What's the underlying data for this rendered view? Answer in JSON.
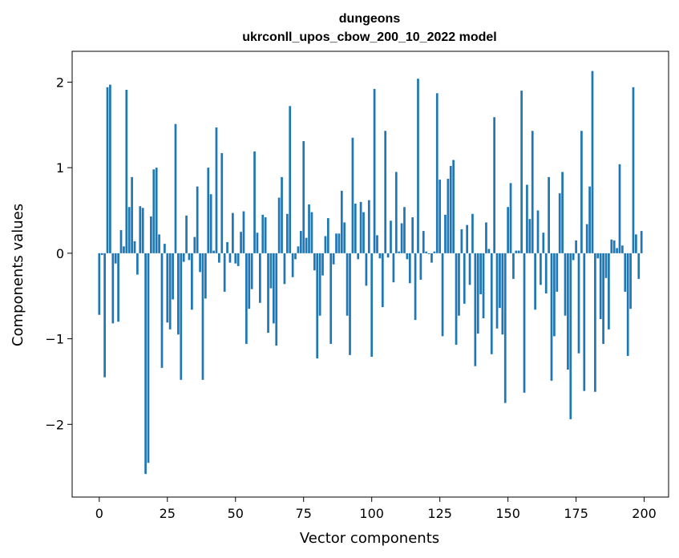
{
  "chart_data": {
    "type": "bar",
    "title": "dungeons",
    "subtitle": "ukrconll_upos_cbow_200_10_2022 model",
    "xlabel": "Vector components",
    "ylabel": "Components values",
    "xlim": [
      -9.95,
      208.95
    ],
    "ylim": [
      -2.85,
      2.36
    ],
    "xticks": [
      0,
      25,
      50,
      75,
      100,
      125,
      150,
      175,
      200
    ],
    "yticks": [
      -2,
      -1,
      0,
      1,
      2
    ],
    "ytick_labels": [
      "−2",
      "−1",
      "0",
      "1",
      "2"
    ],
    "bar_color": "#1f77b4",
    "grid": false,
    "x": [
      0,
      1,
      2,
      3,
      4,
      5,
      6,
      7,
      8,
      9,
      10,
      11,
      12,
      13,
      14,
      15,
      16,
      17,
      18,
      19,
      20,
      21,
      22,
      23,
      24,
      25,
      26,
      27,
      28,
      29,
      30,
      31,
      32,
      33,
      34,
      35,
      36,
      37,
      38,
      39,
      40,
      41,
      42,
      43,
      44,
      45,
      46,
      47,
      48,
      49,
      50,
      51,
      52,
      53,
      54,
      55,
      56,
      57,
      58,
      59,
      60,
      61,
      62,
      63,
      64,
      65,
      66,
      67,
      68,
      69,
      70,
      71,
      72,
      73,
      74,
      75,
      76,
      77,
      78,
      79,
      80,
      81,
      82,
      83,
      84,
      85,
      86,
      87,
      88,
      89,
      90,
      91,
      92,
      93,
      94,
      95,
      96,
      97,
      98,
      99,
      100,
      101,
      102,
      103,
      104,
      105,
      106,
      107,
      108,
      109,
      110,
      111,
      112,
      113,
      114,
      115,
      116,
      117,
      118,
      119,
      120,
      121,
      122,
      123,
      124,
      125,
      126,
      127,
      128,
      129,
      130,
      131,
      132,
      133,
      134,
      135,
      136,
      137,
      138,
      139,
      140,
      141,
      142,
      143,
      144,
      145,
      146,
      147,
      148,
      149,
      150,
      151,
      152,
      153,
      154,
      155,
      156,
      157,
      158,
      159,
      160,
      161,
      162,
      163,
      164,
      165,
      166,
      167,
      168,
      169,
      170,
      171,
      172,
      173,
      174,
      175,
      176,
      177,
      178,
      179,
      180,
      181,
      182,
      183,
      184,
      185,
      186,
      187,
      188,
      189,
      190,
      191,
      192,
      193,
      194,
      195,
      196,
      197,
      198,
      199
    ],
    "values": [
      -0.72,
      -0.02,
      -1.45,
      1.94,
      1.97,
      -0.82,
      -0.12,
      -0.8,
      0.27,
      0.08,
      1.91,
      0.54,
      0.89,
      0.14,
      -0.25,
      0.55,
      0.53,
      -2.58,
      -2.45,
      0.43,
      0.98,
      1.0,
      0.22,
      -1.34,
      0.11,
      -0.81,
      -0.89,
      -0.54,
      1.51,
      -0.95,
      -1.48,
      -0.1,
      0.44,
      -0.08,
      -0.66,
      0.19,
      0.78,
      -0.22,
      -1.48,
      -0.53,
      1.0,
      0.69,
      0.03,
      1.47,
      -0.11,
      1.17,
      -0.45,
      0.13,
      -0.11,
      0.47,
      -0.12,
      -0.15,
      0.25,
      0.49,
      -1.06,
      -0.65,
      -0.42,
      1.19,
      0.24,
      -0.58,
      0.45,
      0.42,
      -0.93,
      -0.41,
      -0.82,
      -1.08,
      0.65,
      0.89,
      -0.36,
      0.46,
      1.72,
      -0.28,
      -0.07,
      0.08,
      0.26,
      1.31,
      0.18,
      0.57,
      0.48,
      -0.2,
      -1.23,
      -0.73,
      -0.26,
      0.2,
      0.41,
      -1.06,
      -0.13,
      0.23,
      0.23,
      0.73,
      0.36,
      -0.73,
      -1.19,
      1.35,
      0.58,
      -0.07,
      0.6,
      0.48,
      -0.38,
      0.62,
      -1.21,
      1.92,
      0.21,
      -0.06,
      -0.63,
      1.43,
      -0.05,
      0.38,
      -0.34,
      0.95,
      0.02,
      0.35,
      0.54,
      -0.07,
      -0.35,
      0.42,
      -0.78,
      2.04,
      -0.31,
      0.26,
      0.02,
      -0.01,
      -0.11,
      0.02,
      1.87,
      0.86,
      -0.97,
      0.45,
      0.87,
      1.02,
      1.09,
      -1.07,
      -0.73,
      0.28,
      -0.59,
      0.33,
      -0.37,
      0.46,
      -1.32,
      -0.94,
      -0.48,
      -0.76,
      0.36,
      0.05,
      -1.18,
      1.59,
      -0.88,
      -0.64,
      -0.95,
      -1.75,
      0.54,
      0.82,
      -0.3,
      0.03,
      0.03,
      1.9,
      -1.63,
      0.8,
      0.4,
      1.43,
      -0.66,
      0.5,
      -0.37,
      0.24,
      -0.47,
      0.89,
      -1.49,
      -0.97,
      -0.45,
      0.7,
      0.95,
      -0.73,
      -1.36,
      -1.94,
      -0.08,
      0.15,
      -1.17,
      1.43,
      -1.61,
      0.34,
      0.78,
      2.13,
      -1.62,
      -0.06,
      -0.77,
      -1.06,
      -0.29,
      -0.89,
      0.16,
      0.15,
      0.06,
      1.04,
      0.09,
      -0.45,
      -1.2,
      -0.65,
      1.94,
      0.22,
      -0.3,
      0.26
    ]
  }
}
